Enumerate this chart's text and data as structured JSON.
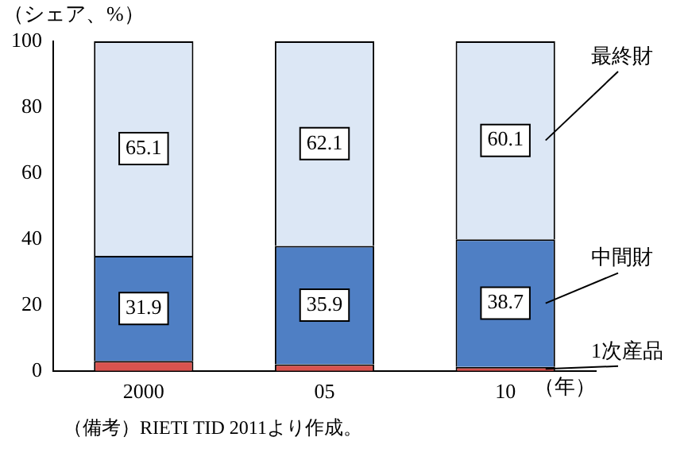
{
  "chart_data": {
    "type": "bar",
    "stacked": true,
    "ylabel": "（シェア、%）",
    "xlabel": "（年）",
    "categories": [
      "2000",
      "05",
      "10"
    ],
    "series": [
      {
        "name": "1次産品",
        "color": "#d9534f",
        "values": [
          3.0,
          2.0,
          1.2
        ]
      },
      {
        "name": "中間財",
        "color": "#4f7fc4",
        "values": [
          31.9,
          35.9,
          38.7
        ],
        "value_labels": [
          "31.9",
          "35.9",
          "38.7"
        ]
      },
      {
        "name": "最終財",
        "color": "#dce7f5",
        "values": [
          65.1,
          62.1,
          60.1
        ],
        "value_labels": [
          "65.1",
          "62.1",
          "60.1"
        ]
      }
    ],
    "ylim": [
      0,
      100
    ],
    "yticks": [
      0,
      20,
      40,
      60,
      80,
      100
    ],
    "grid": false,
    "legend": false,
    "annotations": [
      "（備考）RIETI TID 2011より作成。"
    ]
  }
}
